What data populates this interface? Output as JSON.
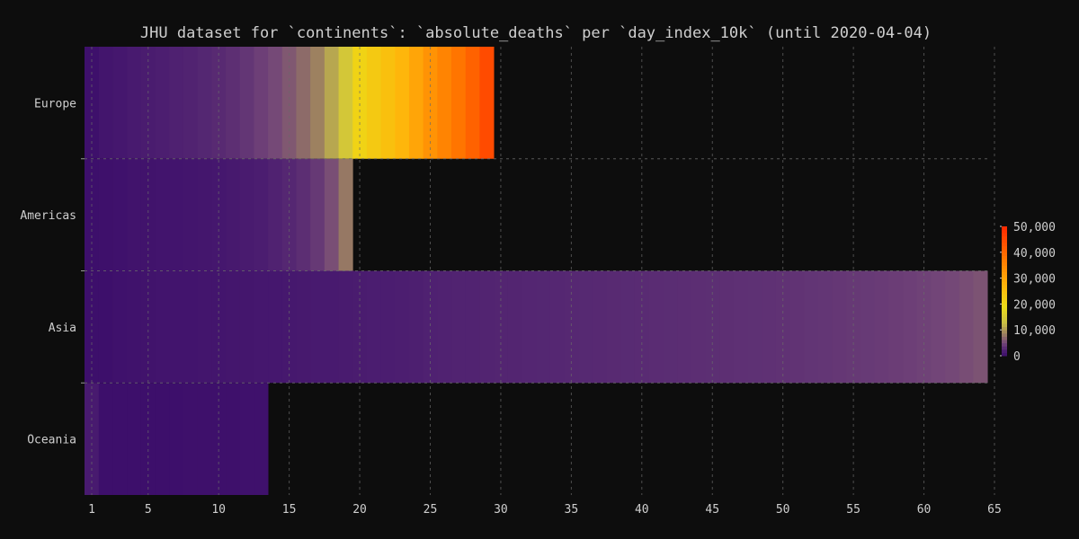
{
  "chart_data": {
    "type": "heatmap",
    "title": "JHU dataset for `continents`: `absolute_deaths` per `day_index_10k` (until 2020-04-04)",
    "xlabel": "",
    "ylabel": "",
    "x_ticks": [
      "1",
      "5",
      "10",
      "15",
      "20",
      "25",
      "30",
      "35",
      "40",
      "45",
      "50",
      "55",
      "60",
      "65"
    ],
    "xlim": [
      1,
      65
    ],
    "grid": true,
    "colorbar": {
      "ticks": [
        "0",
        "10,000",
        "20,000",
        "30,000",
        "40,000",
        "50,000"
      ],
      "range": [
        0,
        50000
      ],
      "placement": "right"
    },
    "colors": {
      "low": "#3d0f6b",
      "mid": "#7a5a6a",
      "high": "#ff3a00"
    },
    "series": [
      {
        "name": "Europe",
        "values": [
          70,
          750,
          1100,
          1400,
          1750,
          2000,
          2200,
          2400,
          2650,
          2900,
          3300,
          3800,
          4500,
          5200,
          6100,
          7200,
          8600,
          11000,
          14500,
          21000,
          23000,
          25000,
          27000,
          30000,
          33000,
          35500,
          38000,
          41000,
          44500
        ]
      },
      {
        "name": "Americas",
        "values": [
          30,
          150,
          300,
          480,
          550,
          600,
          700,
          800,
          880,
          1100,
          1300,
          1600,
          1900,
          2300,
          2700,
          3200,
          4000,
          5500,
          8000
        ]
      },
      {
        "name": "Asia",
        "values": [
          20,
          30,
          300,
          450,
          550,
          600,
          650,
          700,
          750,
          800,
          900,
          950,
          1000,
          1100,
          1200,
          1300,
          1400,
          1500,
          1600,
          1700,
          1800,
          1900,
          2000,
          2100,
          2200,
          2300,
          2350,
          2400,
          2450,
          2500,
          2550,
          2600,
          2650,
          2700,
          2750,
          2800,
          2850,
          2900,
          2950,
          3000,
          3050,
          3100,
          3150,
          3200,
          3250,
          3300,
          3350,
          3400,
          3450,
          3500,
          3600,
          3700,
          3800,
          3900,
          4000,
          4100,
          4200,
          4350,
          4500,
          4700,
          4900,
          5100,
          5400,
          5800
        ]
      },
      {
        "name": "Oceania",
        "values": [
          1500,
          10,
          10,
          20,
          30,
          40,
          60,
          80,
          100,
          140,
          180,
          230,
          280
        ]
      }
    ]
  }
}
